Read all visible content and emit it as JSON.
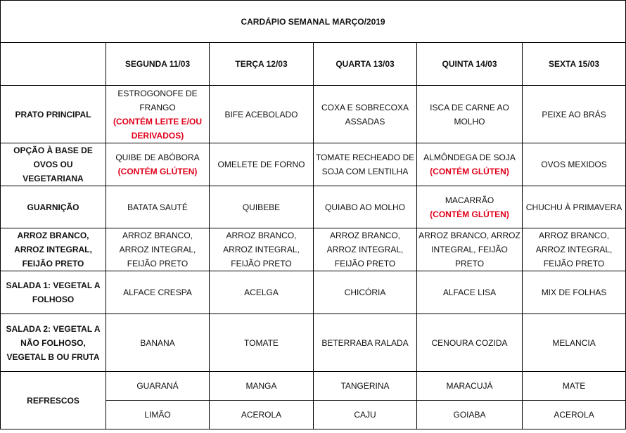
{
  "title": "CARDÁPIO SEMANAL MARÇO/2019",
  "days": [
    "SEGUNDA 11/03",
    "TERÇA 12/03",
    "QUARTA 13/03",
    "QUINTA 14/03",
    "SEXTA 15/03"
  ],
  "warning_color": "#e0001a",
  "rows": [
    {
      "label": "PRATO PRINCIPAL",
      "cells": [
        {
          "text": "ESTROGONOFE DE FRANGO",
          "warning": "(CONTÉM LEITE E/OU DERIVADOS)"
        },
        {
          "text": "BIFE ACEBOLADO"
        },
        {
          "text": "COXA E SOBRECOXA ASSADAS"
        },
        {
          "text": "ISCA DE CARNE AO MOLHO"
        },
        {
          "text": "PEIXE AO BRÁS"
        }
      ]
    },
    {
      "label": "OPÇÃO À BASE DE OVOS OU VEGETARIANA",
      "cells": [
        {
          "text": "QUIBE DE ABÓBORA",
          "warning": "(CONTÉM GLÚTEN)"
        },
        {
          "text": "OMELETE DE FORNO"
        },
        {
          "text": "TOMATE RECHEADO DE SOJA COM LENTILHA"
        },
        {
          "text": "ALMÔNDEGA DE SOJA",
          "warning": "(CONTÉM GLÚTEN)"
        },
        {
          "text": "OVOS MEXIDOS"
        }
      ]
    },
    {
      "label": "GUARNIÇÃO",
      "cells": [
        {
          "text": "BATATA SAUTÉ"
        },
        {
          "text": "QUIBEBE"
        },
        {
          "text": "QUIABO AO MOLHO"
        },
        {
          "text": "MACARRÃO",
          "warning": "(CONTÉM GLÚTEN)"
        },
        {
          "text": "CHUCHU À PRIMAVERA"
        }
      ]
    },
    {
      "label": "ARROZ BRANCO, ARROZ INTEGRAL, FEIJÃO PRETO",
      "cells": [
        {
          "text": "ARROZ BRANCO, ARROZ INTEGRAL, FEIJÃO PRETO"
        },
        {
          "text": "ARROZ BRANCO, ARROZ INTEGRAL, FEIJÃO PRETO"
        },
        {
          "text": "ARROZ BRANCO, ARROZ INTEGRAL, FEIJÃO PRETO"
        },
        {
          "text": "ARROZ BRANCO, ARROZ INTEGRAL, FEIJÃO PRETO"
        },
        {
          "text": "ARROZ BRANCO, ARROZ INTEGRAL, FEIJÃO PRETO"
        }
      ]
    },
    {
      "label": "SALADA 1: VEGETAL A FOLHOSO",
      "cells": [
        {
          "text": "ALFACE CRESPA"
        },
        {
          "text": "ACELGA"
        },
        {
          "text": "CHICÓRIA"
        },
        {
          "text": "ALFACE LISA"
        },
        {
          "text": "MIX DE FOLHAS"
        }
      ]
    },
    {
      "label": "SALADA 2: VEGETAL A NÃO FOLHOSO, VEGETAL B OU FRUTA",
      "cells": [
        {
          "text": "BANANA"
        },
        {
          "text": "TOMATE"
        },
        {
          "text": "BETERRABA RALADA"
        },
        {
          "text": "CENOURA COZIDA"
        },
        {
          "text": "MELANCIA"
        }
      ]
    }
  ],
  "refrescos": {
    "label": "REFRESCOS",
    "first": [
      "GUARANÁ",
      "MANGA",
      "TANGERINA",
      "MARACUJÁ",
      "MATE"
    ],
    "second": [
      "LIMÃO",
      "ACEROLA",
      "CAJU",
      "GOIABA",
      "ACEROLA"
    ]
  }
}
